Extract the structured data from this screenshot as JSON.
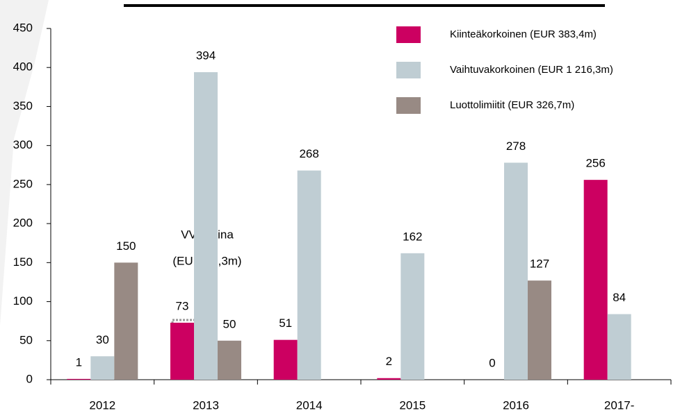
{
  "chart_data": {
    "type": "bar",
    "categories": [
      "2012",
      "2013",
      "2014",
      "2015",
      "2016",
      "2017-"
    ],
    "series": [
      {
        "name": "Kiinteäkorkoinen (EUR 383,4m)",
        "color": "#cc0061",
        "values": [
          1,
          73,
          51,
          2,
          0,
          256
        ]
      },
      {
        "name": "Vaihtuvakorkoinen (EUR 1 216,3m)",
        "color": "#bfcdd3",
        "values": [
          30,
          394,
          268,
          162,
          278,
          84
        ]
      },
      {
        "name": "Luottolimiitit (EUR 326,7m)",
        "color": "#988a84",
        "values": [
          150,
          50,
          null,
          null,
          127,
          null
        ]
      }
    ],
    "annotations": [
      "VVK-laina",
      "(EUR 71,3m)"
    ],
    "ylim": [
      0,
      450
    ],
    "yticks": [
      0,
      50,
      100,
      150,
      200,
      250,
      300,
      350,
      400,
      450
    ],
    "legend": "top-right"
  }
}
